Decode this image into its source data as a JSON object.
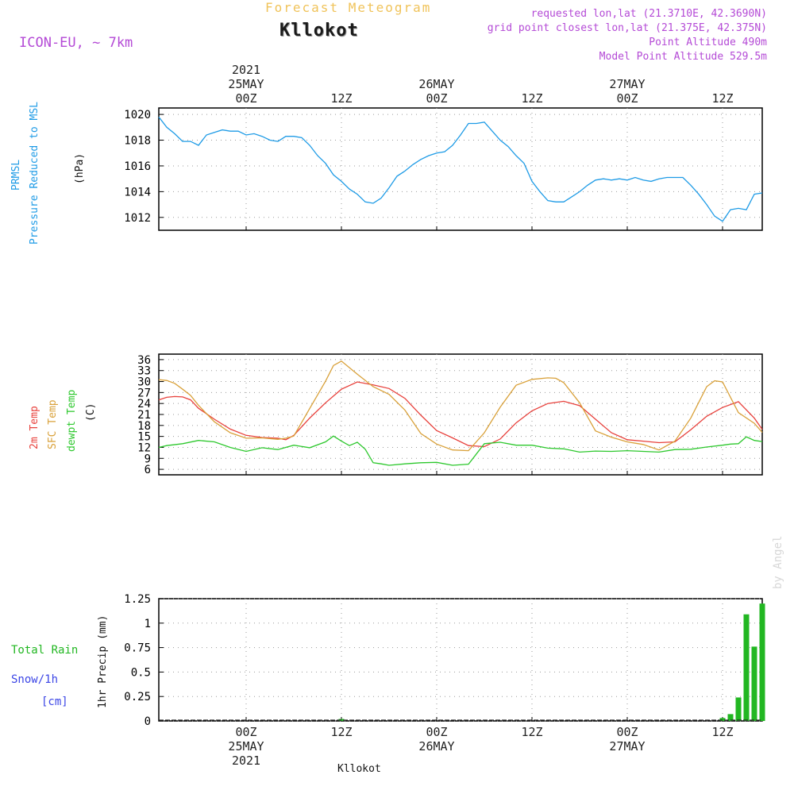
{
  "header": {
    "product": "Forecast Meteogram",
    "station": "Kllokot",
    "model": "ICON-EU, ~ 7km",
    "requested": "requested lon,lat (21.3710E, 42.3690N)",
    "gridpoint": "grid point closest lon,lat (21.375E, 42.375N)",
    "point_alt": "Point Altitude 490m",
    "model_alt": "Model Point Altitude 529.5m"
  },
  "time_axis": {
    "top": [
      {
        "h": 0,
        "lines": [
          "2021",
          "25MAY",
          "00Z"
        ]
      },
      {
        "h": 12,
        "lines": [
          "12Z"
        ]
      },
      {
        "h": 24,
        "lines": [
          "26MAY",
          "00Z"
        ]
      },
      {
        "h": 36,
        "lines": [
          "12Z"
        ]
      },
      {
        "h": 48,
        "lines": [
          "27MAY",
          "00Z"
        ]
      },
      {
        "h": 60,
        "lines": [
          "12Z"
        ]
      }
    ],
    "bottom": [
      {
        "h": 0,
        "lines": [
          "00Z",
          "25MAY",
          "2021"
        ]
      },
      {
        "h": 12,
        "lines": [
          "12Z"
        ]
      },
      {
        "h": 24,
        "lines": [
          "00Z",
          "26MAY"
        ]
      },
      {
        "h": 36,
        "lines": [
          "12Z"
        ]
      },
      {
        "h": 48,
        "lines": [
          "00Z",
          "27MAY"
        ]
      },
      {
        "h": 60,
        "lines": [
          "12Z"
        ]
      }
    ],
    "hmin": -11,
    "hmax": 65
  },
  "panels": {
    "pressure": {
      "l1": "PRMSL",
      "l2": "Pressure Reduced to MSL",
      "unit": "(hPa)"
    },
    "temp": {
      "l1": "2m Temp",
      "l2": "SFC Temp",
      "l3": "dewpt Temp",
      "unit": "(C)"
    },
    "precip": {
      "l1": "Total Rain",
      "l2": "Snow/1h",
      "l3": "[cm]",
      "unit": "1hr Precip (mm)"
    }
  },
  "footer": {
    "station": "Kllokot"
  },
  "watermark": "by Angel",
  "chart_data": [
    {
      "type": "line",
      "title": "",
      "ylabel": "(hPa)",
      "ylim": [
        1011,
        1020.5
      ],
      "yticks": [
        1012,
        1014,
        1016,
        1018,
        1020
      ],
      "series": [
        {
          "name": "PRMSL",
          "color": "#1e9be6",
          "x": [
            -11,
            -10,
            -9,
            -8,
            -7,
            -6,
            -5,
            -4,
            -3,
            -2,
            -1,
            0,
            1,
            2,
            3,
            4,
            5,
            6,
            7,
            8,
            9,
            10,
            11,
            12,
            13,
            14,
            15,
            16,
            17,
            18,
            19,
            20,
            21,
            22,
            23,
            24,
            25,
            26,
            27,
            28,
            29,
            30,
            31,
            32,
            33,
            34,
            35,
            36,
            37,
            38,
            39,
            40,
            41,
            42,
            43,
            44,
            45,
            46,
            47,
            48,
            49,
            50,
            51,
            52,
            53,
            54,
            55,
            56,
            57,
            58,
            59,
            60,
            61,
            62,
            63,
            64,
            65
          ],
          "y": [
            1019.8,
            1019.0,
            1018.5,
            1017.9,
            1017.9,
            1017.6,
            1018.4,
            1018.6,
            1018.8,
            1018.7,
            1018.7,
            1018.4,
            1018.5,
            1018.3,
            1018.0,
            1017.9,
            1018.3,
            1018.3,
            1018.2,
            1017.6,
            1016.8,
            1016.2,
            1015.3,
            1014.8,
            1014.2,
            1013.8,
            1013.2,
            1013.1,
            1013.5,
            1014.3,
            1015.2,
            1015.6,
            1016.1,
            1016.5,
            1016.8,
            1017.0,
            1017.1,
            1017.6,
            1018.4,
            1019.3,
            1019.3,
            1019.4,
            1018.7,
            1018.0,
            1017.5,
            1016.8,
            1016.2,
            1014.8,
            1014.0,
            1013.3,
            1013.2,
            1013.2,
            1013.6,
            1014.0,
            1014.5,
            1014.9,
            1015.0,
            1014.9,
            1015.0,
            1014.9,
            1015.1,
            1014.9,
            1014.8,
            1015.0,
            1015.1,
            1015.1,
            1015.1,
            1014.5,
            1013.8,
            1013.0,
            1012.1,
            1011.7,
            1012.6,
            1012.7,
            1012.6,
            1013.8,
            1013.9
          ]
        }
      ]
    },
    {
      "type": "line",
      "title": "",
      "ylabel": "(C)",
      "ylim": [
        4.5,
        37.5
      ],
      "yticks": [
        6,
        9,
        12,
        15,
        18,
        21,
        24,
        27,
        30,
        33,
        36
      ],
      "series": [
        {
          "name": "2m Temp",
          "color": "#e8413c",
          "x": [
            -11,
            -10,
            -9,
            -8,
            -7,
            -6,
            -4,
            -2,
            0,
            2,
            4,
            5,
            6,
            8,
            10,
            12,
            14,
            16,
            18,
            20,
            22,
            24,
            26,
            28,
            30,
            32,
            34,
            36,
            38,
            40,
            42,
            44,
            46,
            48,
            50,
            52,
            54,
            56,
            58,
            60,
            62,
            64,
            65
          ],
          "y": [
            25.0,
            25.7,
            25.9,
            25.8,
            25.0,
            22.7,
            19.7,
            17.0,
            15.3,
            14.7,
            14.5,
            14.1,
            15.3,
            20.0,
            24.2,
            27.9,
            29.9,
            29.1,
            28.1,
            25.4,
            20.8,
            16.6,
            14.6,
            12.5,
            12.2,
            14.3,
            18.7,
            22.0,
            24.0,
            24.6,
            23.4,
            19.7,
            16.0,
            14.1,
            13.7,
            13.3,
            13.5,
            16.8,
            20.5,
            22.9,
            24.5,
            20.0,
            16.9
          ]
        },
        {
          "name": "SFC Temp",
          "color": "#d9a13a",
          "x": [
            -11,
            -10,
            -9,
            -8,
            -7,
            -6,
            -4,
            -2,
            0,
            2,
            4,
            5,
            6,
            8,
            10,
            11,
            12,
            14,
            16,
            18,
            20,
            22,
            24,
            26,
            28,
            30,
            32,
            34,
            36,
            38,
            39,
            40,
            42,
            44,
            46,
            48,
            50,
            52,
            54,
            56,
            58,
            59,
            60,
            62,
            64,
            65
          ],
          "y": [
            30.5,
            30.3,
            29.5,
            27.9,
            26.2,
            23.5,
            19.0,
            16.0,
            14.5,
            14.6,
            14.2,
            14.5,
            15.1,
            22.6,
            30.1,
            34.4,
            35.6,
            32.0,
            28.6,
            26.5,
            22.2,
            15.8,
            12.9,
            11.3,
            11.1,
            16.0,
            23.0,
            29.0,
            30.6,
            31.0,
            30.9,
            29.7,
            24.2,
            16.5,
            14.8,
            13.5,
            12.8,
            11.3,
            13.7,
            20.0,
            28.6,
            30.2,
            29.9,
            21.5,
            18.6,
            16.1
          ]
        },
        {
          "name": "dewpt Temp",
          "color": "#2dc82d",
          "x": [
            -11,
            -10,
            -8,
            -6,
            -4,
            -2,
            0,
            2,
            4,
            6,
            8,
            10,
            11,
            12,
            13,
            14,
            15,
            16,
            17,
            18,
            20,
            22,
            24,
            26,
            28,
            30,
            32,
            34,
            36,
            38,
            40,
            42,
            44,
            46,
            48,
            50,
            52,
            54,
            56,
            58,
            60,
            61,
            62,
            63,
            64,
            65
          ],
          "y": [
            12.0,
            12.5,
            13.0,
            13.9,
            13.5,
            12.0,
            10.9,
            11.9,
            11.4,
            12.6,
            11.9,
            13.5,
            15.1,
            13.7,
            12.5,
            13.4,
            11.5,
            7.8,
            7.5,
            7.1,
            7.5,
            7.8,
            7.9,
            7.1,
            7.4,
            13.0,
            13.4,
            12.6,
            12.6,
            11.8,
            11.6,
            10.7,
            11.0,
            10.9,
            11.1,
            10.9,
            10.7,
            11.4,
            11.5,
            12.1,
            12.6,
            12.9,
            13.0,
            14.9,
            13.9,
            13.6
          ]
        }
      ]
    },
    {
      "type": "bar",
      "title": "",
      "ylabel": "1hr Precip (mm)",
      "ylim": [
        0,
        1.25
      ],
      "yticks": [
        0,
        0.25,
        0.5,
        0.75,
        1,
        1.25
      ],
      "series": [
        {
          "name": "Total Rain",
          "color": "#22b722",
          "x": [
            12,
            60,
            61,
            62,
            63,
            64,
            65
          ],
          "y": [
            0.02,
            0.03,
            0.07,
            0.24,
            1.09,
            0.76,
            1.2
          ]
        },
        {
          "name": "Snow/1h",
          "color": "#3c46e6",
          "x": [],
          "y": []
        }
      ]
    }
  ]
}
